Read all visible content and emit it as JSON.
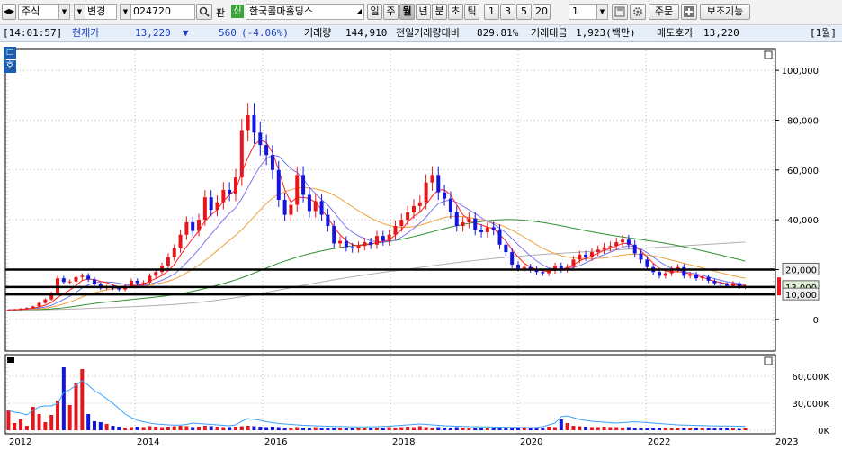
{
  "toolbar": {
    "market_label": "주식",
    "period_type_label": "변경",
    "stock_code": "024720",
    "pan_label": "판",
    "new_badge": "신",
    "stock_name": "한국콜마홀딩스",
    "period_buttons": [
      "일",
      "주",
      "월",
      "년",
      "분",
      "초",
      "틱"
    ],
    "selected_period": "월",
    "number_buttons": [
      "1",
      "3",
      "5",
      "20"
    ],
    "count_value": "1",
    "order_button": "주문",
    "aux_button": "보조기능"
  },
  "info_bar": {
    "time": "[14:01:57]",
    "price_label": "현재가",
    "price": "13,220",
    "change_arrow": "▼",
    "change": "560",
    "change_pct": "(-4.06%)",
    "volume_label": "거래량",
    "volume": "144,910",
    "prev_ratio_label": "전일거래량대비",
    "prev_ratio": "829.81%",
    "amount_label": "거래대금",
    "amount": "1,923(백만)",
    "ask_label": "매도호가",
    "ask": "13,220",
    "period_tag": "[1월]"
  },
  "side_buttons": {
    "top": "□",
    "bottom": "호"
  },
  "chart_data": {
    "type": "candlestick",
    "interval": "monthly",
    "y_ticks": [
      "100,000",
      "80,000",
      "60,000",
      "40,000",
      "20,000",
      "0"
    ],
    "ylim": [
      -12000,
      108000
    ],
    "x_ticks": [
      "2012",
      "2014",
      "2016",
      "2018",
      "2020",
      "2022",
      "2023"
    ],
    "h_lines": [
      20000,
      13000,
      10000
    ],
    "h_line_labels": [
      "20,000",
      "13,000",
      "10,000"
    ],
    "closes": [
      3800,
      4000,
      4300,
      4600,
      5200,
      6600,
      8000,
      10500,
      16500,
      15000,
      15200,
      17000,
      17500,
      16000,
      14000,
      12500,
      13000,
      12500,
      12000,
      13500,
      15500,
      14500,
      14800,
      17500,
      19000,
      21500,
      25000,
      28500,
      34000,
      39000,
      35500,
      40000,
      49000,
      44000,
      47000,
      52000,
      50500,
      57000,
      76000,
      82000,
      75000,
      70000,
      66000,
      60000,
      48000,
      42000,
      46000,
      58000,
      50000,
      43500,
      47500,
      42000,
      37500,
      30500,
      31500,
      29000,
      28500,
      29500,
      31000,
      30000,
      33500,
      31500,
      34000,
      37500,
      40000,
      43000,
      45500,
      47000,
      55000,
      58000,
      51000,
      48500,
      43000,
      37500,
      39000,
      40500,
      36000,
      35000,
      37000,
      36000,
      30000,
      27000,
      22000,
      20500,
      21000,
      20000,
      19000,
      18500,
      19500,
      21500,
      20000,
      21000,
      24000,
      26000,
      25000,
      27000,
      28000,
      29000,
      29500,
      31000,
      32000,
      30000,
      26500,
      24000,
      21000,
      19000,
      17500,
      18500,
      20000,
      21000,
      17500,
      18000,
      16500,
      17000,
      15500,
      14500,
      14000,
      13500,
      14500,
      13000,
      13220
    ],
    "ma": [
      {
        "color": "#ff1e1e",
        "values": [
          3800,
          3900,
          4000,
          4200,
          4500,
          5000,
          5700,
          6800,
          8800,
          10200,
          11800,
          13600,
          15600,
          16200,
          16000,
          15200,
          14800,
          13800,
          13000,
          12700,
          13300,
          13800,
          14000,
          15400,
          16400,
          17600,
          19500,
          22000,
          25800,
          29200,
          32500,
          35500,
          39500,
          42000,
          44000,
          47500,
          50000,
          52000,
          59000,
          65000,
          70000,
          72000,
          71000,
          67000,
          60000,
          52000,
          47000,
          49000,
          49000,
          48500,
          47000,
          44000,
          41000,
          37000,
          34000,
          31500,
          30000,
          29500,
          30000,
          30000,
          31000,
          31200,
          32000,
          33800,
          36000,
          39000,
          41500,
          43000,
          46000,
          49500,
          52000,
          52000,
          50000,
          46000,
          42000,
          40000,
          38500,
          38000,
          37000,
          36500,
          34000,
          31500,
          28000,
          25000,
          22500,
          21000,
          20000,
          19500,
          19200,
          20000,
          20300,
          20500,
          21800,
          23500,
          24500,
          25500,
          26500,
          27800,
          28500,
          29500,
          30500,
          30500,
          29500,
          27500,
          25000,
          22500,
          20500,
          19500,
          19000,
          19200,
          18800,
          18200,
          17500,
          17000,
          16000,
          15300,
          14800,
          14300,
          14000,
          13800,
          13500
        ]
      },
      {
        "color": "#7777ee",
        "values": [
          3800,
          3850,
          3950,
          4100,
          4300,
          4600,
          5000,
          5600,
          6800,
          8000,
          9300,
          10800,
          12600,
          13800,
          14700,
          15000,
          15000,
          14900,
          14500,
          14000,
          13700,
          13600,
          13700,
          14100,
          14800,
          15700,
          16800,
          18200,
          20300,
          22800,
          25400,
          28100,
          31200,
          34200,
          37000,
          40000,
          42600,
          44800,
          48500,
          53000,
          57500,
          61500,
          64500,
          66000,
          65500,
          63000,
          60500,
          59000,
          56500,
          53000,
          50500,
          48000,
          46000,
          43000,
          40000,
          37000,
          35000,
          33500,
          32500,
          31500,
          31200,
          31000,
          31200,
          31800,
          33000,
          34700,
          36600,
          38700,
          41000,
          44000,
          46500,
          47500,
          48000,
          47000,
          45500,
          44000,
          42500,
          40800,
          39400,
          38300,
          36600,
          34800,
          32400,
          30000,
          27700,
          25500,
          23500,
          21800,
          20600,
          20300,
          20200,
          20300,
          20800,
          21600,
          22700,
          23900,
          25000,
          26000,
          27000,
          28000,
          29000,
          29600,
          29200,
          28200,
          26800,
          25000,
          23200,
          21700,
          20500,
          19800,
          19200,
          18700,
          18200,
          17700,
          17000,
          16300,
          15700,
          15100,
          14700,
          14300,
          13900
        ]
      },
      {
        "color": "#f0a040",
        "values": [
          3800,
          3820,
          3870,
          3950,
          4060,
          4250,
          4500,
          4900,
          5500,
          6200,
          7000,
          7900,
          9000,
          9900,
          10700,
          11300,
          11800,
          12200,
          12500,
          12700,
          12900,
          13200,
          13500,
          13800,
          14200,
          14700,
          15300,
          16200,
          17300,
          18700,
          20200,
          21800,
          23600,
          25600,
          27600,
          29700,
          31800,
          33800,
          36000,
          38600,
          41300,
          44000,
          46500,
          48700,
          50300,
          51300,
          52000,
          52800,
          53000,
          52800,
          52400,
          51800,
          51000,
          49900,
          48500,
          46800,
          45200,
          43600,
          42100,
          40700,
          39500,
          38500,
          37700,
          37200,
          37000,
          37000,
          37300,
          37800,
          38500,
          39300,
          40200,
          40900,
          41300,
          41400,
          41200,
          40900,
          40500,
          40000,
          39400,
          38800,
          38000,
          37000,
          35800,
          34400,
          33000,
          31500,
          30000,
          28600,
          27400,
          26400,
          25600,
          25000,
          24700,
          24500,
          24400,
          24400,
          24500,
          24700,
          25000,
          25400,
          25800,
          26100,
          26200,
          26100,
          25900,
          25500,
          25000,
          24400,
          23800,
          23200,
          22500,
          21900,
          21300,
          20700,
          20000,
          19300,
          18700,
          18100,
          17500,
          17000,
          16500
        ]
      },
      {
        "color": "#2f8f2f",
        "values": [
          3800,
          3810,
          3830,
          3860,
          3900,
          3970,
          4060,
          4200,
          4400,
          4650,
          4950,
          5300,
          5700,
          6050,
          6400,
          6700,
          6950,
          7200,
          7450,
          7700,
          7950,
          8200,
          8450,
          8700,
          8950,
          9250,
          9550,
          9900,
          10300,
          10750,
          11250,
          11800,
          12400,
          13050,
          13700,
          14400,
          15100,
          15850,
          16700,
          17600,
          18600,
          19600,
          20600,
          21600,
          22550,
          23400,
          24200,
          25000,
          25700,
          26350,
          26950,
          27500,
          28000,
          28450,
          28850,
          29200,
          29500,
          29800,
          30100,
          30400,
          30700,
          31000,
          31350,
          31750,
          32200,
          32700,
          33250,
          33850,
          34500,
          35150,
          35800,
          36450,
          37050,
          37600,
          38100,
          38550,
          38950,
          39300,
          39600,
          39850,
          40000,
          40100,
          40100,
          40000,
          39800,
          39550,
          39250,
          38900,
          38500,
          38050,
          37600,
          37100,
          36600,
          36100,
          35600,
          35150,
          34700,
          34250,
          33850,
          33450,
          33100,
          32750,
          32400,
          32050,
          31700,
          31350,
          30950,
          30550,
          30100,
          29650,
          29150,
          28650,
          28100,
          27550,
          27000,
          26400,
          25800,
          25200,
          24600,
          24000,
          23400
        ]
      },
      {
        "color": "#b0b0b0",
        "values": [
          3800,
          3800,
          3810,
          3820,
          3840,
          3860,
          3890,
          3930,
          3980,
          4040,
          4110,
          4190,
          4280,
          4380,
          4480,
          4580,
          4680,
          4780,
          4880,
          4980,
          5080,
          5190,
          5300,
          5420,
          5550,
          5690,
          5840,
          6000,
          6180,
          6380,
          6600,
          6840,
          7100,
          7380,
          7680,
          8000,
          8340,
          8700,
          9080,
          9480,
          9900,
          10340,
          10800,
          11270,
          11750,
          12230,
          12710,
          13190,
          13660,
          14120,
          14570,
          15010,
          15440,
          15860,
          16270,
          16670,
          17060,
          17440,
          17810,
          18170,
          18520,
          18860,
          19200,
          19530,
          19860,
          20190,
          20520,
          20850,
          21180,
          21510,
          21840,
          22170,
          22490,
          22800,
          23100,
          23390,
          23670,
          23940,
          24200,
          24450,
          24690,
          24920,
          25140,
          25350,
          25550,
          25740,
          25920,
          26090,
          26250,
          26400,
          26550,
          26700,
          26850,
          27000,
          27150,
          27300,
          27450,
          27600,
          27750,
          27900,
          28050,
          28200,
          28350,
          28500,
          28650,
          28800,
          28950,
          29100,
          29250,
          29400,
          29550,
          29700,
          29850,
          30000,
          30150,
          30300,
          30450,
          30600,
          30750,
          30900,
          31000
        ]
      }
    ],
    "volume_ticks": [
      "60,000K",
      "30,000K",
      "0K"
    ],
    "volume_ylim": [
      0,
      80000
    ],
    "volumes": [
      22000,
      8000,
      12000,
      5000,
      26000,
      18000,
      9000,
      17000,
      33000,
      70000,
      28000,
      52000,
      68000,
      18000,
      10000,
      9000,
      7000,
      5000,
      4000,
      3000,
      3500,
      4000,
      3500,
      4500,
      4000,
      3500,
      4000,
      4500,
      5000,
      4500,
      3500,
      4000,
      5000,
      4500,
      4000,
      3500,
      3500,
      4000,
      4500,
      5000,
      4500,
      4000,
      3500,
      4000,
      3500,
      3000,
      3000,
      3500,
      3000,
      3000,
      3500,
      3000,
      2500,
      3000,
      2500,
      2500,
      3000,
      2500,
      2500,
      3000,
      2500,
      3000,
      3500,
      3000,
      3500,
      4000,
      3500,
      4500,
      3500,
      3000,
      3500,
      3000,
      2500,
      3500,
      3000,
      2500,
      3000,
      2500,
      2500,
      3000,
      2500,
      2500,
      3000,
      2500,
      2500,
      2000,
      2500,
      3000,
      4000,
      3500,
      12000,
      8000,
      5000,
      4500,
      4000,
      3500,
      3500,
      4000,
      3500,
      3500,
      3000,
      3500,
      3000,
      2500,
      3000,
      2500,
      2500,
      3000,
      2500,
      2500,
      2000,
      2500,
      2000,
      2500,
      2000,
      2000,
      2500,
      2000,
      2000,
      1500,
      2000
    ],
    "volume_ma": [
      22000,
      20000,
      19000,
      17000,
      22000,
      26000,
      27000,
      27000,
      30000,
      42000,
      45000,
      50000,
      55000,
      50000,
      44000,
      40000,
      35000,
      30000,
      24000,
      18000,
      14000,
      11000,
      9500,
      8000,
      7000,
      6500,
      6000,
      5800,
      5700,
      6500,
      8000,
      7500,
      7000,
      6500,
      6000,
      5500,
      5000,
      6000,
      10000,
      13000,
      12000,
      11000,
      9500,
      8500,
      7500,
      7000,
      6500,
      6000,
      5500,
      5200,
      5000,
      4800,
      4500,
      4300,
      4200,
      4000,
      3900,
      3800,
      3800,
      3900,
      4000,
      4200,
      4500,
      5000,
      5500,
      6000,
      6500,
      7000,
      6500,
      6000,
      5500,
      5000,
      4800,
      4500,
      4300,
      4000,
      3900,
      3800,
      3700,
      3600,
      3500,
      3400,
      3300,
      3200,
      3100,
      3000,
      3200,
      4000,
      6000,
      8000,
      15000,
      16000,
      14000,
      12000,
      11000,
      10000,
      9500,
      9000,
      8500,
      8000,
      8500,
      9000,
      9500,
      9000,
      8500,
      8000,
      7500,
      7000,
      6500,
      6000,
      5800,
      5600,
      5400,
      5200,
      5000,
      4900,
      4800,
      4700,
      4600,
      4500,
      4400
    ]
  }
}
